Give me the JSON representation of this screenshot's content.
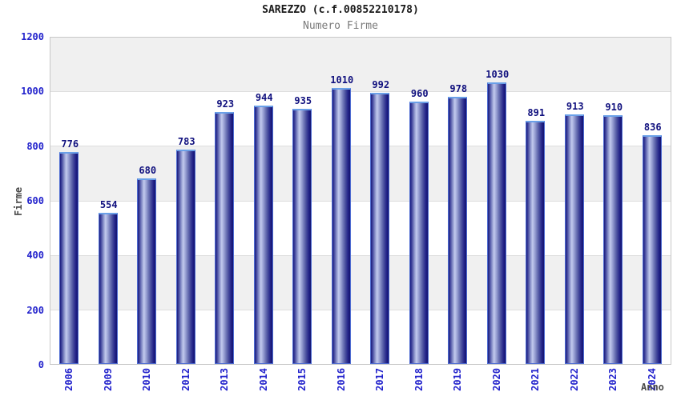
{
  "chart": {
    "title": "SAREZZO (c.f.00852210178)",
    "subtitle": "Numero Firme",
    "ylabel": "Firme",
    "xlabel": "Anno"
  },
  "chart_data": {
    "type": "bar",
    "title": "SAREZZO (c.f.00852210178)",
    "subtitle": "Numero Firme",
    "xlabel": "Anno",
    "ylabel": "Firme",
    "categories": [
      "2006",
      "2009",
      "2010",
      "2012",
      "2013",
      "2014",
      "2015",
      "2016",
      "2017",
      "2018",
      "2019",
      "2020",
      "2021",
      "2022",
      "2023",
      "2024"
    ],
    "values": [
      776,
      554,
      680,
      783,
      923,
      944,
      935,
      1010,
      992,
      960,
      978,
      1030,
      891,
      913,
      910,
      836
    ],
    "ylim": [
      0,
      1200
    ],
    "yticks": [
      0,
      200,
      400,
      600,
      800,
      1000,
      1200
    ],
    "grid": "alternating-horizontal-bands",
    "legend": "none",
    "colors": {
      "tick_label_blue": "#2222cc",
      "value_label_navy": "#10107e",
      "bar_gradient_dark": "#12126f",
      "bar_gradient_light": "#c2caee",
      "bar_border": "#4e6cd2",
      "bar_top_cap": "#6aa0e8",
      "band_gray": "#f0f0f0",
      "band_white": "#ffffff",
      "plot_border": "#c8c8c8",
      "title_color": "#1a1a1a",
      "subtitle_color": "#7a7a7a",
      "axis_title_color": "#4a4a4a"
    }
  }
}
